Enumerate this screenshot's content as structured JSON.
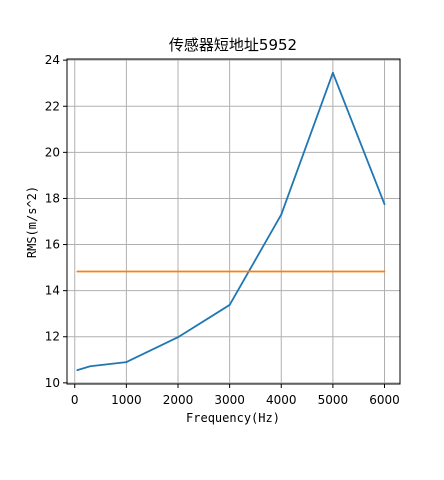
{
  "chart_data": {
    "type": "line",
    "title": "传感器短地址5952",
    "xlabel": "Frequency(Hz)",
    "ylabel": "RMS(m/s^2)",
    "xlim": [
      -150,
      6300
    ],
    "ylim": [
      9.95,
      24.05
    ],
    "xticks": [
      0,
      1000,
      2000,
      3000,
      4000,
      5000,
      6000
    ],
    "yticks": [
      10,
      12,
      14,
      16,
      18,
      20,
      22,
      24
    ],
    "grid": true,
    "series": [
      {
        "color": "#1f77b4",
        "x": [
          50,
          300,
          1000,
          2000,
          3000,
          4000,
          5000,
          6000
        ],
        "y": [
          10.55,
          10.72,
          10.9,
          11.98,
          13.38,
          17.3,
          23.45,
          17.75
        ]
      },
      {
        "color": "#ff7f0e",
        "x": [
          50,
          6000
        ],
        "y": [
          14.83,
          14.83
        ]
      }
    ]
  }
}
